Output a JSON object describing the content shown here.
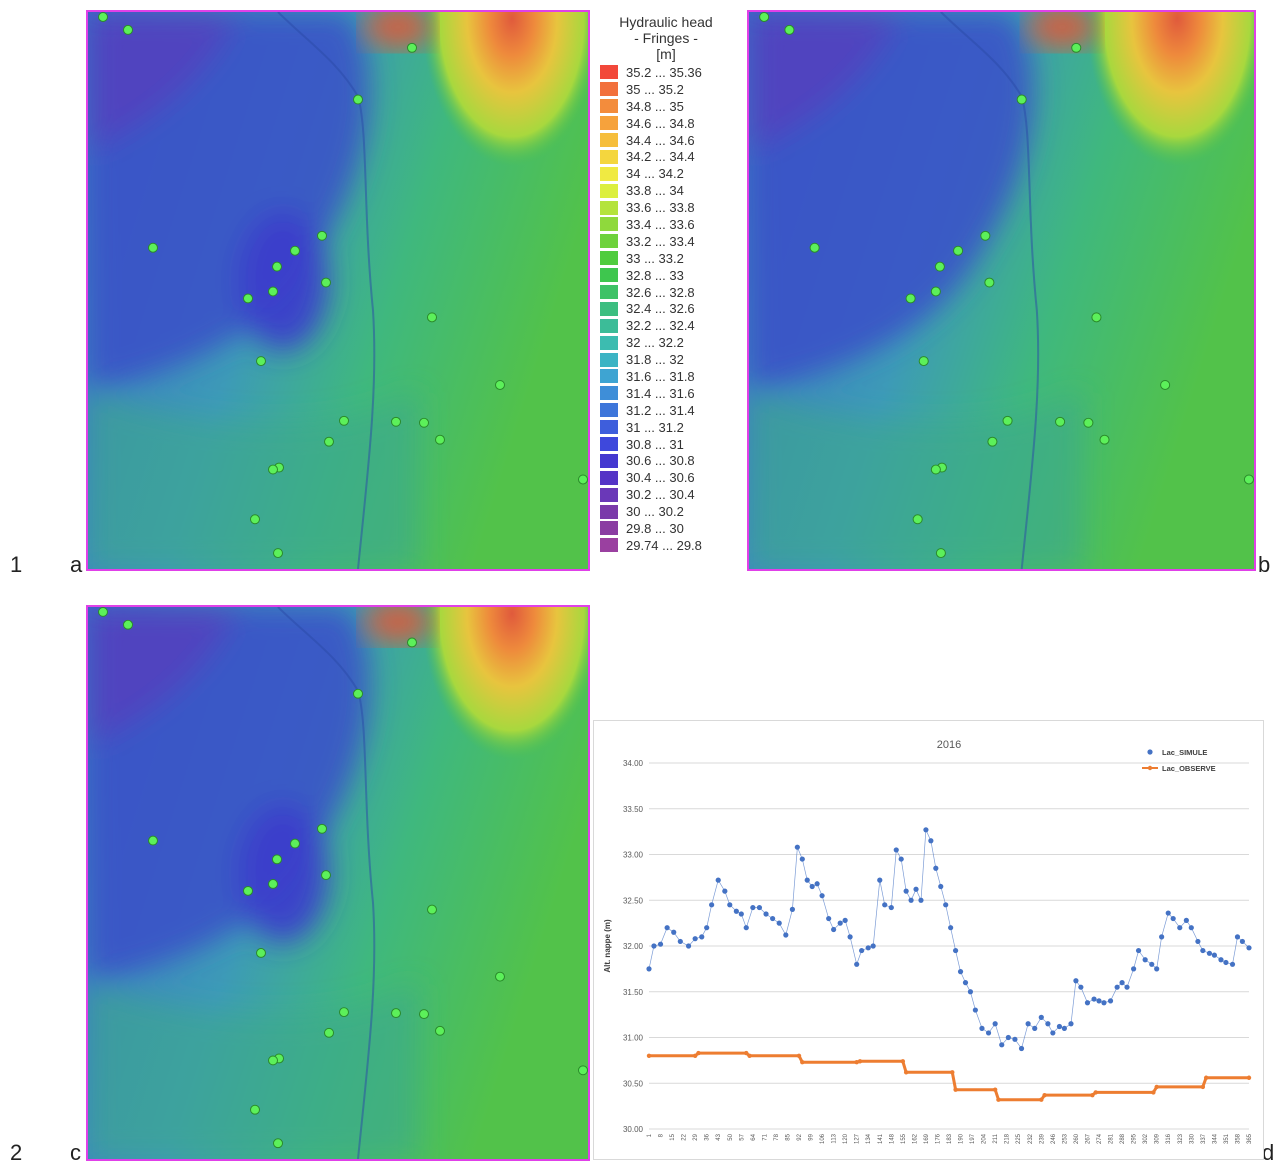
{
  "row_labels": [
    "1",
    "2"
  ],
  "panel_labels": [
    "a",
    "b",
    "c",
    "d"
  ],
  "legend": {
    "title_lines": [
      "Hydraulic head",
      "- Fringes -",
      "[m]"
    ],
    "entries": [
      {
        "label": "35.2 ... 35.36",
        "color": "#f2483a"
      },
      {
        "label": "35 ... 35.2",
        "color": "#f2703c"
      },
      {
        "label": "34.8 ... 35",
        "color": "#f38c3c"
      },
      {
        "label": "34.6 ... 34.8",
        "color": "#f6a23c"
      },
      {
        "label": "34.4 ... 34.6",
        "color": "#f6be3c"
      },
      {
        "label": "34.2 ... 34.4",
        "color": "#f4d63e"
      },
      {
        "label": "34 ... 34.2",
        "color": "#f0ea42"
      },
      {
        "label": "33.8 ... 34",
        "color": "#dcef3e"
      },
      {
        "label": "33.6 ... 33.8",
        "color": "#b4e33c"
      },
      {
        "label": "33.4 ... 33.6",
        "color": "#8fd93c"
      },
      {
        "label": "33.2 ... 33.4",
        "color": "#6ed23c"
      },
      {
        "label": "33 ... 33.2",
        "color": "#4fcc3e"
      },
      {
        "label": "32.8 ... 33",
        "color": "#3ec64e"
      },
      {
        "label": "32.6 ... 32.8",
        "color": "#3ec266"
      },
      {
        "label": "32.4 ... 32.6",
        "color": "#3cbe80"
      },
      {
        "label": "32.2 ... 32.4",
        "color": "#3cbc98"
      },
      {
        "label": "32 ... 32.2",
        "color": "#3cbcb0"
      },
      {
        "label": "31.8 ... 32",
        "color": "#3cb4c4"
      },
      {
        "label": "31.6 ... 31.8",
        "color": "#3ea4d2"
      },
      {
        "label": "31.4 ... 31.6",
        "color": "#3e8ed8"
      },
      {
        "label": "31.2 ... 31.4",
        "color": "#3e76da"
      },
      {
        "label": "31 ... 31.2",
        "color": "#3e5edc"
      },
      {
        "label": "30.8 ... 31",
        "color": "#3e48dc"
      },
      {
        "label": "30.6 ... 30.8",
        "color": "#4438d0"
      },
      {
        "label": "30.4 ... 30.6",
        "color": "#5434c6"
      },
      {
        "label": "30.2 ... 30.4",
        "color": "#6a38b8"
      },
      {
        "label": "30 ... 30.2",
        "color": "#7a3aaa"
      },
      {
        "label": "29.8 ... 30",
        "color": "#8a3ca2"
      },
      {
        "label": "29.74 ... 29.8",
        "color": "#9a40a0"
      }
    ]
  },
  "chart_data": {
    "type": "line",
    "title": "2016",
    "ylabel": "Alt. nappe (m)",
    "xlabel": "",
    "ylim": [
      30.0,
      34.0
    ],
    "yticks": [
      "30.00",
      "30.50",
      "31.00",
      "31.50",
      "32.00",
      "32.50",
      "33.00",
      "33.50",
      "34.00"
    ],
    "xlim": [
      1,
      365
    ],
    "xticks": [
      1,
      8,
      15,
      22,
      29,
      36,
      43,
      50,
      57,
      64,
      71,
      78,
      85,
      92,
      99,
      106,
      113,
      120,
      127,
      134,
      141,
      148,
      155,
      162,
      169,
      176,
      183,
      190,
      197,
      204,
      211,
      218,
      225,
      232,
      239,
      246,
      253,
      260,
      267,
      274,
      281,
      288,
      295,
      302,
      309,
      316,
      323,
      330,
      337,
      344,
      351,
      358,
      365
    ],
    "grid": true,
    "legend_position": "top-right",
    "series": [
      {
        "name": "Lac_SIMULE",
        "color": "#4472c4",
        "style": "markers",
        "points": [
          [
            1,
            31.75
          ],
          [
            4,
            32.0
          ],
          [
            8,
            32.02
          ],
          [
            12,
            32.2
          ],
          [
            16,
            32.15
          ],
          [
            20,
            32.05
          ],
          [
            25,
            32.0
          ],
          [
            29,
            32.08
          ],
          [
            33,
            32.1
          ],
          [
            36,
            32.2
          ],
          [
            39,
            32.45
          ],
          [
            43,
            32.72
          ],
          [
            47,
            32.6
          ],
          [
            50,
            32.45
          ],
          [
            54,
            32.38
          ],
          [
            57,
            32.35
          ],
          [
            60,
            32.2
          ],
          [
            64,
            32.42
          ],
          [
            68,
            32.42
          ],
          [
            72,
            32.35
          ],
          [
            76,
            32.3
          ],
          [
            80,
            32.25
          ],
          [
            84,
            32.12
          ],
          [
            88,
            32.4
          ],
          [
            91,
            33.08
          ],
          [
            94,
            32.95
          ],
          [
            97,
            32.72
          ],
          [
            100,
            32.65
          ],
          [
            103,
            32.68
          ],
          [
            106,
            32.55
          ],
          [
            110,
            32.3
          ],
          [
            113,
            32.18
          ],
          [
            117,
            32.25
          ],
          [
            120,
            32.28
          ],
          [
            123,
            32.1
          ],
          [
            127,
            31.8
          ],
          [
            130,
            31.95
          ],
          [
            134,
            31.98
          ],
          [
            137,
            32.0
          ],
          [
            141,
            32.72
          ],
          [
            144,
            32.45
          ],
          [
            148,
            32.42
          ],
          [
            151,
            33.05
          ],
          [
            154,
            32.95
          ],
          [
            157,
            32.6
          ],
          [
            160,
            32.5
          ],
          [
            163,
            32.62
          ],
          [
            166,
            32.5
          ],
          [
            169,
            33.27
          ],
          [
            172,
            33.15
          ],
          [
            175,
            32.85
          ],
          [
            178,
            32.65
          ],
          [
            181,
            32.45
          ],
          [
            184,
            32.2
          ],
          [
            187,
            31.95
          ],
          [
            190,
            31.72
          ],
          [
            193,
            31.6
          ],
          [
            196,
            31.5
          ],
          [
            199,
            31.3
          ],
          [
            203,
            31.1
          ],
          [
            207,
            31.05
          ],
          [
            211,
            31.15
          ],
          [
            215,
            30.92
          ],
          [
            219,
            31.0
          ],
          [
            223,
            30.98
          ],
          [
            227,
            30.88
          ],
          [
            231,
            31.15
          ],
          [
            235,
            31.1
          ],
          [
            239,
            31.22
          ],
          [
            243,
            31.15
          ],
          [
            246,
            31.05
          ],
          [
            250,
            31.12
          ],
          [
            253,
            31.1
          ],
          [
            257,
            31.15
          ],
          [
            260,
            31.62
          ],
          [
            263,
            31.55
          ],
          [
            267,
            31.38
          ],
          [
            271,
            31.42
          ],
          [
            274,
            31.4
          ],
          [
            277,
            31.38
          ],
          [
            281,
            31.4
          ],
          [
            285,
            31.55
          ],
          [
            288,
            31.6
          ],
          [
            291,
            31.55
          ],
          [
            295,
            31.75
          ],
          [
            298,
            31.95
          ],
          [
            302,
            31.85
          ],
          [
            306,
            31.8
          ],
          [
            309,
            31.75
          ],
          [
            312,
            32.1
          ],
          [
            316,
            32.36
          ],
          [
            319,
            32.3
          ],
          [
            323,
            32.2
          ],
          [
            327,
            32.28
          ],
          [
            330,
            32.2
          ],
          [
            334,
            32.05
          ],
          [
            337,
            31.95
          ],
          [
            341,
            31.92
          ],
          [
            344,
            31.9
          ],
          [
            348,
            31.85
          ],
          [
            351,
            31.82
          ],
          [
            355,
            31.8
          ],
          [
            358,
            32.1
          ],
          [
            361,
            32.05
          ],
          [
            365,
            31.98
          ]
        ]
      },
      {
        "name": "Lac_OBSERVE",
        "color": "#ed7d31",
        "style": "line-markers",
        "points": [
          [
            1,
            30.8
          ],
          [
            29,
            30.8
          ],
          [
            31,
            30.83
          ],
          [
            60,
            30.83
          ],
          [
            62,
            30.8
          ],
          [
            92,
            30.8
          ],
          [
            94,
            30.73
          ],
          [
            127,
            30.73
          ],
          [
            129,
            30.74
          ],
          [
            155,
            30.74
          ],
          [
            157,
            30.62
          ],
          [
            185,
            30.62
          ],
          [
            187,
            30.43
          ],
          [
            211,
            30.43
          ],
          [
            213,
            30.32
          ],
          [
            239,
            30.32
          ],
          [
            241,
            30.37
          ],
          [
            270,
            30.37
          ],
          [
            272,
            30.4
          ],
          [
            307,
            30.4
          ],
          [
            309,
            30.46
          ],
          [
            337,
            30.46
          ],
          [
            339,
            30.56
          ],
          [
            365,
            30.56
          ]
        ]
      }
    ]
  }
}
